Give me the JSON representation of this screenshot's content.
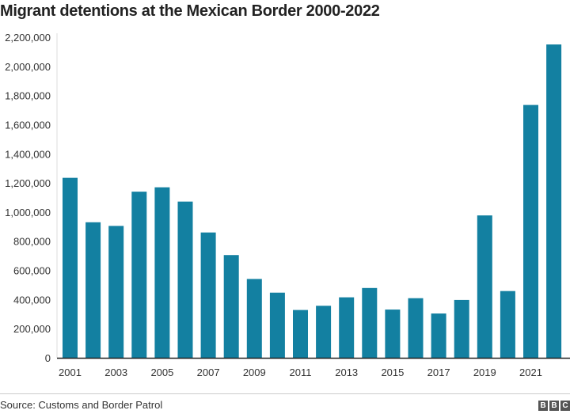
{
  "chart_data": {
    "type": "bar",
    "title": "Migrant detentions at the Mexican Border 2000-2022",
    "xlabel": "",
    "ylabel": "",
    "ylim": [
      0,
      2200000
    ],
    "yticks": [
      0,
      200000,
      400000,
      600000,
      800000,
      1000000,
      1200000,
      1400000,
      1600000,
      1800000,
      2000000,
      2200000
    ],
    "ytick_labels": [
      "0",
      "200,000",
      "400,000",
      "600,000",
      "800,000",
      "1,000,000",
      "1,200,000",
      "1,400,000",
      "1,600,000",
      "1,800,000",
      "2,000,000",
      "2,200,000"
    ],
    "categories": [
      "2001",
      "2002",
      "2003",
      "2004",
      "2005",
      "2006",
      "2007",
      "2008",
      "2009",
      "2010",
      "2011",
      "2012",
      "2013",
      "2014",
      "2015",
      "2016",
      "2017",
      "2018",
      "2019",
      "2020",
      "2021",
      "2022"
    ],
    "xtick_labels": [
      "2001",
      "2003",
      "2005",
      "2007",
      "2009",
      "2011",
      "2013",
      "2015",
      "2017",
      "2019",
      "2021"
    ],
    "values": [
      1235000,
      930000,
      905000,
      1140000,
      1170000,
      1072000,
      860000,
      705000,
      541000,
      447000,
      328000,
      357000,
      415000,
      479000,
      331000,
      409000,
      304000,
      397000,
      977000,
      458000,
      1735000,
      2150000
    ],
    "grid": false,
    "bar_color": "#1380A1"
  },
  "footer": {
    "source": "Source: Customs and Border Patrol",
    "logo_letters": [
      "B",
      "B",
      "C"
    ]
  }
}
